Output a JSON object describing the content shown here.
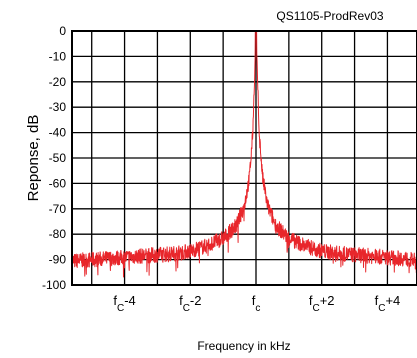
{
  "chart_data": {
    "type": "line",
    "title": "",
    "plot_id": "QS1105-ProdRev03",
    "xlabel": "Frequency in kHz",
    "ylabel": "Reponse, dB",
    "ylim": [
      -100,
      0
    ],
    "xlim": [
      -5.6,
      4.9
    ],
    "grid": true,
    "y_ticks": [
      {
        "value": 0,
        "label": "0"
      },
      {
        "value": -10,
        "label": "-10"
      },
      {
        "value": -20,
        "label": "-20"
      },
      {
        "value": -30,
        "label": "-30"
      },
      {
        "value": -40,
        "label": "-40"
      },
      {
        "value": -50,
        "label": "-50"
      },
      {
        "value": -60,
        "label": "-60"
      },
      {
        "value": -70,
        "label": "-70"
      },
      {
        "value": -80,
        "label": "-80"
      },
      {
        "value": -90,
        "label": "-90"
      },
      {
        "value": -100,
        "label": "-100"
      }
    ],
    "x_ticks": [
      {
        "value": -4,
        "base": "f",
        "sub": "C",
        "suffix": "-4"
      },
      {
        "value": -2,
        "base": "f",
        "sub": "C",
        "suffix": "-2"
      },
      {
        "value": 0,
        "base": "f",
        "sub": "c",
        "suffix": ""
      },
      {
        "value": 2,
        "base": "f",
        "sub": "C",
        "suffix": "+2"
      },
      {
        "value": 4,
        "base": "f",
        "sub": "C",
        "suffix": "+4"
      }
    ],
    "series": [
      {
        "color": "#e8262b",
        "envelope": {
          "x": [
            -5.6,
            -4.5,
            -3.5,
            -2.5,
            -2.0,
            -1.5,
            -1.0,
            -0.6,
            -0.35,
            -0.2,
            -0.1,
            -0.05,
            0,
            0.05,
            0.1,
            0.2,
            0.35,
            0.6,
            1.0,
            1.5,
            2.0,
            2.5,
            3.5,
            4.5,
            4.9
          ],
          "y": [
            -90,
            -89,
            -88,
            -87,
            -86,
            -84,
            -81,
            -76,
            -68,
            -57,
            -40,
            -20,
            0,
            -20,
            -40,
            -57,
            -68,
            -76,
            -81,
            -84,
            -86,
            -87,
            -88,
            -89,
            -90
          ],
          "noise_db": 6
        }
      }
    ]
  }
}
